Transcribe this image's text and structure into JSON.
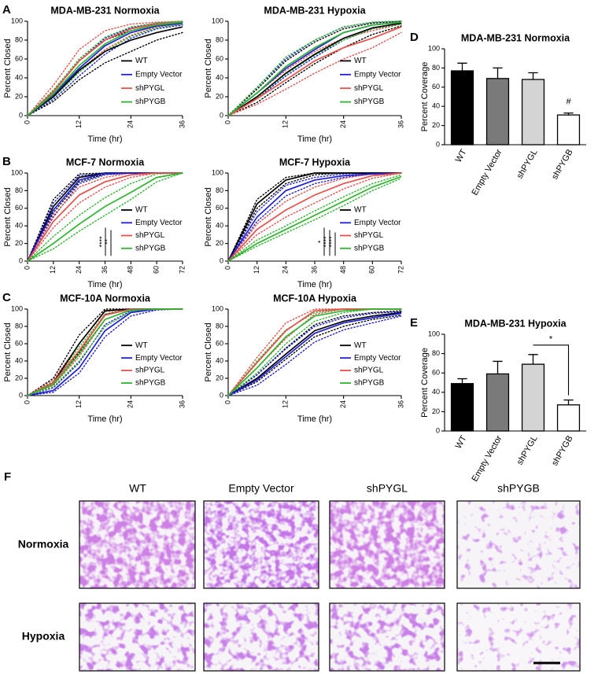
{
  "chart_data": [
    {
      "type": "line",
      "panel": "A",
      "title": "MDA-MB-231 Normoxia",
      "x_label": "Time (hr)",
      "y_label": "Percent Closed",
      "x": [
        0,
        6,
        12,
        18,
        24,
        30,
        36
      ],
      "xlim": [
        0,
        36
      ],
      "xticks": [
        0,
        12,
        24,
        36
      ],
      "ylim": [
        0,
        100
      ],
      "yticks": [
        0,
        20,
        40,
        60,
        80,
        100
      ],
      "legend": "lower right",
      "series": [
        {
          "name": "WT",
          "color": "#000000",
          "values": [
            0,
            20,
            48,
            68,
            80,
            88,
            94
          ],
          "lower": [
            0,
            15,
            38,
            56,
            68,
            80,
            88
          ],
          "upper": [
            0,
            26,
            58,
            80,
            90,
            96,
            98
          ]
        },
        {
          "name": "Empty Vector",
          "color": "#1f1fd6",
          "values": [
            0,
            22,
            50,
            74,
            88,
            95,
            98
          ],
          "lower": [
            0,
            17,
            42,
            65,
            82,
            92,
            96
          ],
          "upper": [
            0,
            27,
            58,
            82,
            93,
            98,
            99
          ]
        },
        {
          "name": "shPYGL",
          "color": "#e8504a",
          "values": [
            0,
            25,
            58,
            80,
            92,
            97,
            99
          ],
          "lower": [
            0,
            19,
            48,
            70,
            85,
            94,
            97
          ],
          "upper": [
            0,
            32,
            70,
            90,
            97,
            99,
            100
          ]
        },
        {
          "name": "shPYGB",
          "color": "#2db52d",
          "values": [
            0,
            23,
            53,
            76,
            90,
            96,
            99
          ],
          "lower": [
            0,
            19,
            46,
            68,
            84,
            93,
            97
          ],
          "upper": [
            0,
            27,
            60,
            83,
            94,
            98,
            100
          ]
        }
      ]
    },
    {
      "type": "line",
      "title": "MDA-MB-231 Hypoxia",
      "x_label": "Time (hr)",
      "y_label": "Percent Closed",
      "x": [
        0,
        6,
        12,
        18,
        24,
        30,
        36
      ],
      "xlim": [
        0,
        36
      ],
      "xticks": [
        0,
        12,
        24,
        36
      ],
      "ylim": [
        0,
        100
      ],
      "yticks": [
        0,
        20,
        40,
        60,
        80,
        100
      ],
      "legend": "lower right",
      "series": [
        {
          "name": "WT",
          "color": "#000000",
          "values": [
            0,
            20,
            45,
            65,
            82,
            93,
            98
          ],
          "lower": [
            0,
            14,
            35,
            55,
            72,
            86,
            95
          ],
          "upper": [
            0,
            28,
            58,
            78,
            92,
            98,
            100
          ]
        },
        {
          "name": "Empty Vector",
          "color": "#1f1fd6",
          "values": [
            0,
            24,
            50,
            70,
            88,
            96,
            99
          ],
          "lower": [
            0,
            18,
            42,
            62,
            80,
            92,
            97
          ],
          "upper": [
            0,
            30,
            60,
            80,
            94,
            99,
            100
          ]
        },
        {
          "name": "shPYGL",
          "color": "#e8504a",
          "values": [
            0,
            18,
            38,
            58,
            72,
            82,
            94
          ],
          "lower": [
            0,
            12,
            28,
            45,
            60,
            72,
            88
          ],
          "upper": [
            0,
            24,
            48,
            68,
            82,
            90,
            97
          ]
        },
        {
          "name": "shPYGB",
          "color": "#2db52d",
          "values": [
            0,
            24,
            52,
            72,
            88,
            96,
            99
          ],
          "lower": [
            0,
            19,
            44,
            64,
            80,
            92,
            97
          ],
          "upper": [
            0,
            30,
            62,
            80,
            94,
            99,
            100
          ]
        }
      ]
    },
    {
      "type": "line",
      "panel": "B",
      "title": "MCF-7 Normoxia",
      "x_label": "Time (hr)",
      "y_label": "Percent Closed",
      "x": [
        0,
        12,
        24,
        36,
        48,
        60,
        72
      ],
      "xlim": [
        0,
        72
      ],
      "xticks": [
        0,
        12,
        24,
        36,
        48,
        60,
        72
      ],
      "ylim": [
        0,
        100
      ],
      "yticks": [
        0,
        20,
        40,
        60,
        80,
        100
      ],
      "legend": "lower right",
      "annotations": [
        "****",
        "**"
      ],
      "series": [
        {
          "name": "WT",
          "color": "#000000",
          "values": [
            0,
            62,
            95,
            100,
            100,
            100,
            100
          ],
          "lower": [
            0,
            55,
            90,
            99,
            100,
            100,
            100
          ],
          "upper": [
            0,
            70,
            99,
            100,
            100,
            100,
            100
          ]
        },
        {
          "name": "Empty Vector",
          "color": "#1f1fd6",
          "values": [
            0,
            58,
            92,
            100,
            100,
            100,
            100
          ],
          "lower": [
            0,
            50,
            88,
            98,
            100,
            100,
            100
          ],
          "upper": [
            0,
            66,
            97,
            100,
            100,
            100,
            100
          ]
        },
        {
          "name": "shPYGL",
          "color": "#e8504a",
          "values": [
            0,
            45,
            75,
            90,
            98,
            100,
            100
          ],
          "lower": [
            0,
            38,
            66,
            84,
            95,
            100,
            100
          ],
          "upper": [
            0,
            52,
            84,
            95,
            100,
            100,
            100
          ]
        },
        {
          "name": "shPYGB",
          "color": "#2db52d",
          "values": [
            0,
            20,
            42,
            62,
            78,
            95,
            100
          ],
          "lower": [
            0,
            14,
            34,
            52,
            70,
            90,
            100
          ],
          "upper": [
            0,
            28,
            52,
            72,
            88,
            99,
            100
          ]
        }
      ]
    },
    {
      "type": "line",
      "title": "MCF-7 Hypoxia",
      "x_label": "Time (hr)",
      "y_label": "Percent Closed",
      "x": [
        0,
        12,
        24,
        36,
        48,
        60,
        72
      ],
      "xlim": [
        0,
        72
      ],
      "xticks": [
        0,
        12,
        24,
        36,
        48,
        60,
        72
      ],
      "ylim": [
        0,
        100
      ],
      "yticks": [
        0,
        20,
        40,
        60,
        80,
        100
      ],
      "legend": "lower right",
      "annotations": [
        "*",
        "****",
        "****"
      ],
      "series": [
        {
          "name": "WT",
          "color": "#000000",
          "values": [
            0,
            65,
            92,
            100,
            100,
            100,
            100
          ],
          "lower": [
            0,
            60,
            88,
            98,
            100,
            100,
            100
          ],
          "upper": [
            0,
            70,
            95,
            100,
            100,
            100,
            100
          ]
        },
        {
          "name": "Empty Vector",
          "color": "#1f1fd6",
          "values": [
            0,
            50,
            80,
            92,
            97,
            99,
            100
          ],
          "lower": [
            0,
            45,
            74,
            88,
            95,
            99,
            100
          ],
          "upper": [
            0,
            56,
            86,
            95,
            99,
            100,
            100
          ]
        },
        {
          "name": "shPYGL",
          "color": "#e8504a",
          "values": [
            0,
            36,
            58,
            75,
            88,
            97,
            100
          ],
          "lower": [
            0,
            30,
            50,
            66,
            82,
            94,
            100
          ],
          "upper": [
            0,
            42,
            68,
            84,
            94,
            99,
            100
          ]
        },
        {
          "name": "shPYGB",
          "color": "#2db52d",
          "values": [
            0,
            20,
            36,
            52,
            68,
            84,
            96
          ],
          "lower": [
            0,
            17,
            32,
            47,
            63,
            80,
            94
          ],
          "upper": [
            0,
            24,
            40,
            57,
            73,
            88,
            98
          ]
        }
      ]
    },
    {
      "type": "line",
      "panel": "C",
      "title": "MCF-10A Normoxia",
      "x_label": "Time (hr)",
      "y_label": "Percent Closed",
      "x": [
        0,
        6,
        12,
        18,
        24,
        30,
        36
      ],
      "xlim": [
        0,
        36
      ],
      "xticks": [
        0,
        12,
        24,
        36
      ],
      "ylim": [
        0,
        100
      ],
      "yticks": [
        0,
        20,
        40,
        60,
        80,
        100
      ],
      "legend": "lower right",
      "series": [
        {
          "name": "WT",
          "color": "#000000",
          "values": [
            0,
            15,
            60,
            98,
            100,
            100,
            100
          ],
          "lower": [
            0,
            12,
            50,
            94,
            100,
            100,
            100
          ],
          "upper": [
            0,
            20,
            70,
            100,
            100,
            100,
            100
          ]
        },
        {
          "name": "Empty Vector",
          "color": "#1f1fd6",
          "values": [
            0,
            6,
            32,
            75,
            96,
            100,
            100
          ],
          "lower": [
            0,
            4,
            26,
            68,
            92,
            99,
            100
          ],
          "upper": [
            0,
            9,
            38,
            82,
            98,
            100,
            100
          ]
        },
        {
          "name": "shPYGL",
          "color": "#e8504a",
          "values": [
            0,
            15,
            52,
            93,
            100,
            100,
            100
          ],
          "lower": [
            0,
            12,
            45,
            88,
            99,
            100,
            100
          ],
          "upper": [
            0,
            18,
            60,
            97,
            100,
            100,
            100
          ]
        },
        {
          "name": "shPYGB",
          "color": "#2db52d",
          "values": [
            0,
            13,
            48,
            88,
            99,
            100,
            100
          ],
          "lower": [
            0,
            10,
            40,
            80,
            97,
            100,
            100
          ],
          "upper": [
            0,
            16,
            56,
            94,
            100,
            100,
            100
          ]
        }
      ]
    },
    {
      "type": "line",
      "title": "MCF-10A Hypoxia",
      "x_label": "Time (hr)",
      "y_label": "Percent Closed",
      "x": [
        0,
        6,
        12,
        18,
        24,
        30,
        36
      ],
      "xlim": [
        0,
        36
      ],
      "xticks": [
        0,
        12,
        24,
        36
      ],
      "ylim": [
        0,
        100
      ],
      "yticks": [
        0,
        20,
        40,
        60,
        80,
        100
      ],
      "legend": "lower right",
      "series": [
        {
          "name": "WT",
          "color": "#000000",
          "values": [
            0,
            20,
            48,
            75,
            86,
            92,
            96
          ],
          "lower": [
            0,
            16,
            42,
            68,
            80,
            88,
            93
          ],
          "upper": [
            0,
            24,
            55,
            82,
            92,
            96,
            98
          ]
        },
        {
          "name": "Empty Vector",
          "color": "#1f1fd6",
          "values": [
            0,
            18,
            45,
            72,
            84,
            90,
            95
          ],
          "lower": [
            0,
            12,
            36,
            62,
            76,
            84,
            92
          ],
          "upper": [
            0,
            24,
            54,
            80,
            90,
            95,
            97
          ]
        },
        {
          "name": "shPYGL",
          "color": "#e8504a",
          "values": [
            0,
            38,
            75,
            98,
            100,
            100,
            100
          ],
          "lower": [
            0,
            32,
            66,
            94,
            100,
            100,
            100
          ],
          "upper": [
            0,
            44,
            84,
            100,
            100,
            100,
            100
          ]
        },
        {
          "name": "shPYGB",
          "color": "#2db52d",
          "values": [
            0,
            32,
            68,
            92,
            98,
            100,
            100
          ],
          "lower": [
            0,
            26,
            60,
            86,
            96,
            100,
            100
          ],
          "upper": [
            0,
            40,
            76,
            96,
            100,
            100,
            100
          ]
        }
      ]
    },
    {
      "type": "bar",
      "panel": "D",
      "title": "MDA-MB-231 Normoxia",
      "y_label": "Percent Coverage",
      "categories": [
        "WT",
        "Empty Vector",
        "shPYGL",
        "shPYGB"
      ],
      "values": [
        77,
        69,
        68,
        31
      ],
      "errors": [
        8,
        11,
        7,
        2
      ],
      "colors": [
        "#000000",
        "#7a7a7a",
        "#d4d4d4",
        "#ffffff"
      ],
      "ylim": [
        0,
        100
      ],
      "yticks": [
        0,
        20,
        40,
        60,
        80,
        100
      ],
      "annotation": "#"
    },
    {
      "type": "bar",
      "panel": "E",
      "title": "MDA-MB-231 Hypoxia",
      "y_label": "Percent Coverage",
      "categories": [
        "WT",
        "Empty Vector",
        "shPYGL",
        "shPYGB"
      ],
      "values": [
        49,
        59,
        69,
        27
      ],
      "errors": [
        5,
        13,
        10,
        5
      ],
      "colors": [
        "#000000",
        "#7a7a7a",
        "#d4d4d4",
        "#ffffff"
      ],
      "ylim": [
        0,
        100
      ],
      "yticks": [
        0,
        20,
        40,
        60,
        80,
        100
      ],
      "bracket_label": "*"
    }
  ],
  "figure_f": {
    "panel": "F",
    "columns": [
      "WT",
      "Empty Vector",
      "shPYGL",
      "shPYGB"
    ],
    "rows": [
      "Normoxia",
      "Hypoxia"
    ]
  }
}
